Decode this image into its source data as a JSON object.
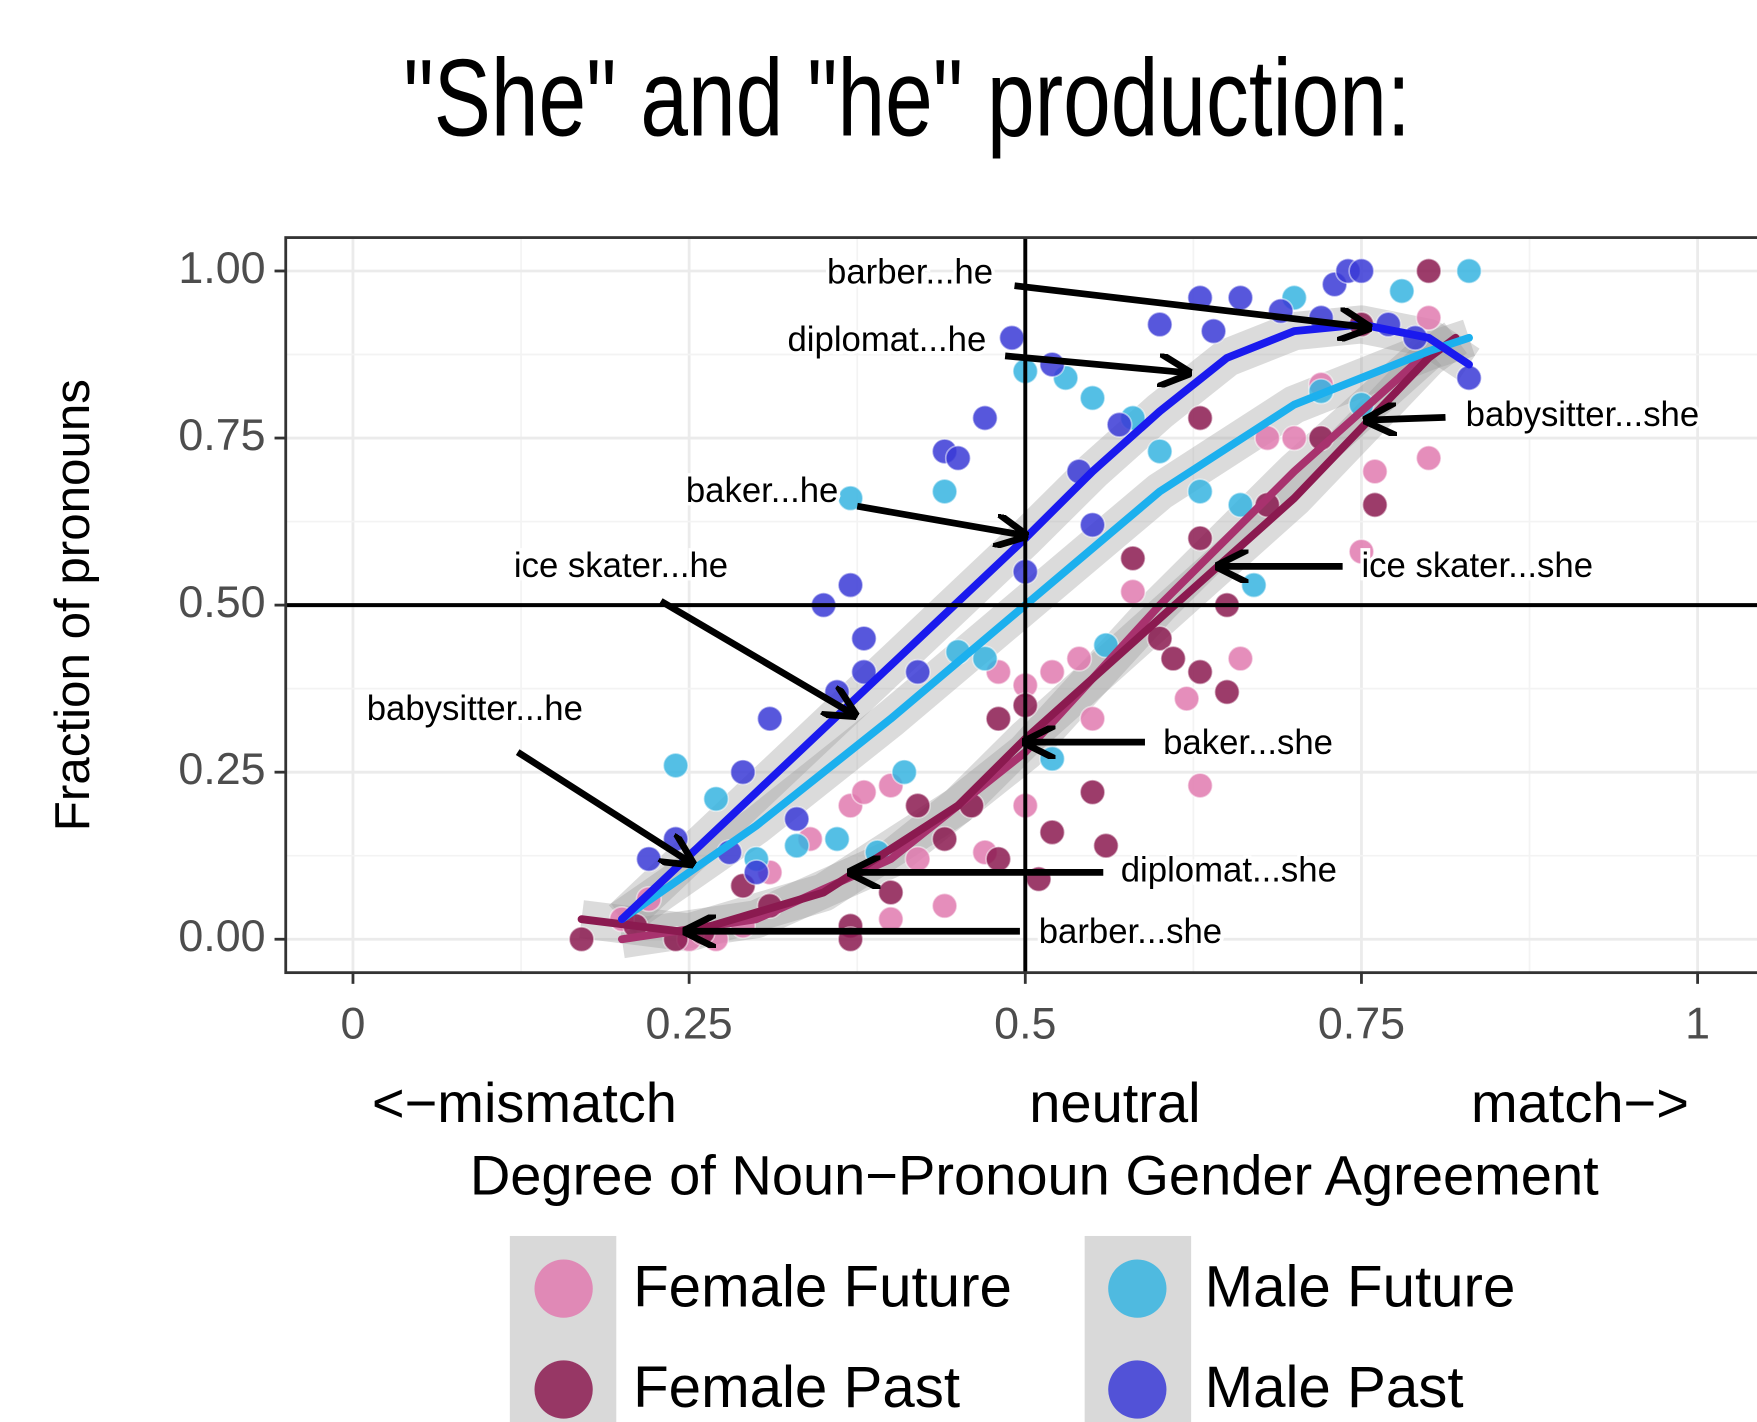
{
  "chart_data": {
    "type": "scatter",
    "title": "\"She\" and \"he\" production:",
    "ylabel": "Fraction of pronouns",
    "xlabel": "Degree of Noun−Pronoun Gender Agreement",
    "xlabel_parts": [
      "<−mismatch",
      "neutral",
      "match−>"
    ],
    "xlim": [
      -0.05,
      1.05
    ],
    "ylim": [
      -0.05,
      1.05
    ],
    "xticks": [
      0,
      0.25,
      0.5,
      0.75,
      1
    ],
    "yticks": [
      {
        "value": 0,
        "label": "0.00"
      },
      {
        "value": 0.25,
        "label": "0.25"
      },
      {
        "value": 0.5,
        "label": "0.50"
      },
      {
        "value": 0.75,
        "label": "0.75"
      },
      {
        "value": 1,
        "label": "1.00"
      }
    ],
    "grid": true,
    "vlines": [
      0.5
    ],
    "hlines": [
      0.5
    ],
    "series": [
      {
        "name": "Female Future",
        "color": "#e07aaf",
        "fit_color": "#a8326e",
        "x": [
          0.2,
          0.22,
          0.25,
          0.27,
          0.29,
          0.31,
          0.34,
          0.37,
          0.38,
          0.4,
          0.4,
          0.42,
          0.44,
          0.47,
          0.48,
          0.5,
          0.5,
          0.52,
          0.54,
          0.55,
          0.58,
          0.62,
          0.63,
          0.66,
          0.68,
          0.7,
          0.72,
          0.75,
          0.76,
          0.8,
          0.8
        ],
        "values": [
          0.03,
          0.06,
          0,
          0,
          0.02,
          0.1,
          0.15,
          0.2,
          0.22,
          0.23,
          0.03,
          0.12,
          0.05,
          0.13,
          0.4,
          0.2,
          0.38,
          0.4,
          0.42,
          0.33,
          0.52,
          0.36,
          0.23,
          0.42,
          0.75,
          0.75,
          0.83,
          0.58,
          0.7,
          0.72,
          0.93
        ],
        "fit_x": [
          0.2,
          0.3,
          0.4,
          0.5,
          0.6,
          0.7,
          0.8
        ],
        "fit_values": [
          0,
          0.03,
          0.12,
          0.28,
          0.5,
          0.7,
          0.88
        ]
      },
      {
        "name": "Female Past",
        "color": "#8b1a50",
        "fit_color": "#8b1a50",
        "x": [
          0.17,
          0.21,
          0.24,
          0.26,
          0.29,
          0.31,
          0.37,
          0.37,
          0.4,
          0.42,
          0.44,
          0.46,
          0.48,
          0.48,
          0.5,
          0.52,
          0.55,
          0.56,
          0.58,
          0.6,
          0.61,
          0.63,
          0.65,
          0.65,
          0.63,
          0.68,
          0.72,
          0.76,
          0.8,
          0.75,
          0.63,
          0.51
        ],
        "values": [
          0,
          0.02,
          0,
          0.01,
          0.08,
          0.05,
          0.02,
          0,
          0.07,
          0.2,
          0.15,
          0.2,
          0.12,
          0.33,
          0.35,
          0.16,
          0.22,
          0.14,
          0.57,
          0.45,
          0.42,
          0.4,
          0.5,
          0.37,
          0.6,
          0.65,
          0.75,
          0.65,
          1,
          0.92,
          0.78,
          0.09
        ],
        "fit_x": [
          0.17,
          0.25,
          0.35,
          0.45,
          0.5,
          0.6,
          0.7,
          0.8,
          0.82
        ],
        "fit_values": [
          0.03,
          0.01,
          0.07,
          0.2,
          0.3,
          0.48,
          0.66,
          0.87,
          0.9
        ]
      },
      {
        "name": "Male Future",
        "color": "#36b4e0",
        "fit_color": "#1cb0ee",
        "x": [
          0.24,
          0.27,
          0.3,
          0.33,
          0.36,
          0.37,
          0.44,
          0.45,
          0.47,
          0.5,
          0.53,
          0.55,
          0.58,
          0.6,
          0.63,
          0.66,
          0.67,
          0.7,
          0.72,
          0.75,
          0.78,
          0.83,
          0.56,
          0.52,
          0.41,
          0.39
        ],
        "values": [
          0.26,
          0.21,
          0.12,
          0.14,
          0.15,
          0.66,
          0.67,
          0.43,
          0.42,
          0.85,
          0.84,
          0.81,
          0.78,
          0.73,
          0.67,
          0.65,
          0.53,
          0.96,
          0.82,
          0.8,
          0.97,
          1,
          0.44,
          0.27,
          0.25,
          0.13
        ],
        "fit_x": [
          0.2,
          0.3,
          0.4,
          0.5,
          0.6,
          0.7,
          0.8,
          0.83
        ],
        "fit_values": [
          0.03,
          0.17,
          0.33,
          0.5,
          0.67,
          0.8,
          0.88,
          0.9
        ]
      },
      {
        "name": "Male Past",
        "color": "#3a3ad6",
        "fit_color": "#1a1aee",
        "x": [
          0.24,
          0.22,
          0.29,
          0.31,
          0.33,
          0.35,
          0.37,
          0.38,
          0.38,
          0.36,
          0.44,
          0.45,
          0.47,
          0.49,
          0.52,
          0.54,
          0.57,
          0.6,
          0.63,
          0.66,
          0.64,
          0.69,
          0.72,
          0.73,
          0.74,
          0.75,
          0.77,
          0.79,
          0.83,
          0.55,
          0.5,
          0.42,
          0.28,
          0.3
        ],
        "values": [
          0.15,
          0.12,
          0.25,
          0.33,
          0.18,
          0.5,
          0.53,
          0.45,
          0.4,
          0.37,
          0.73,
          0.72,
          0.78,
          0.9,
          0.86,
          0.7,
          0.77,
          0.92,
          0.96,
          0.96,
          0.91,
          0.94,
          0.93,
          0.98,
          1,
          1,
          0.92,
          0.9,
          0.84,
          0.62,
          0.55,
          0.4,
          0.13,
          0.1
        ],
        "fit_x": [
          0.2,
          0.3,
          0.4,
          0.5,
          0.55,
          0.6,
          0.65,
          0.7,
          0.75,
          0.8,
          0.83
        ],
        "fit_values": [
          0.03,
          0.22,
          0.41,
          0.6,
          0.7,
          0.79,
          0.87,
          0.91,
          0.92,
          0.9,
          0.86
        ]
      }
    ],
    "annotations": [
      {
        "text": "barber...he",
        "text_xy": [
          0.476,
          0.995
        ],
        "align": "end",
        "arrow_from": [
          0.492,
          0.978
        ],
        "arrow_to": [
          0.753,
          0.916
        ]
      },
      {
        "text": "diplomat...he",
        "text_xy": [
          0.471,
          0.894
        ],
        "align": "end",
        "arrow_from": [
          0.485,
          0.873
        ],
        "arrow_to": [
          0.619,
          0.848
        ]
      },
      {
        "text": "baker...he",
        "text_xy": [
          0.361,
          0.668
        ],
        "align": "end",
        "arrow_from": [
          0.375,
          0.648
        ],
        "arrow_to": [
          0.4975,
          0.605
        ]
      },
      {
        "text": "ice skater...he",
        "text_xy": [
          0.279,
          0.556
        ],
        "align": "end",
        "arrow_from": [
          0.229,
          0.506
        ],
        "arrow_to": [
          0.371,
          0.338
        ]
      },
      {
        "text": "babysitter...he",
        "text_xy": [
          0.171,
          0.342
        ],
        "align": "end",
        "arrow_from": [
          0.1225,
          0.28
        ],
        "arrow_to": [
          0.25,
          0.116
        ]
      },
      {
        "text": "babysitter...she",
        "text_xy": [
          0.8275,
          0.782
        ],
        "align": "start",
        "arrow_from": [
          0.8125,
          0.781
        ],
        "arrow_to": [
          0.756,
          0.777
        ]
      },
      {
        "text": "ice skater...she",
        "text_xy": [
          0.75,
          0.556
        ],
        "align": "start",
        "arrow_from": [
          0.736,
          0.558
        ],
        "arrow_to": [
          0.646,
          0.558
        ]
      },
      {
        "text": "baker...she",
        "text_xy": [
          0.6025,
          0.291
        ],
        "align": "start",
        "arrow_from": [
          0.589,
          0.295
        ],
        "arrow_to": [
          0.5025,
          0.295
        ]
      },
      {
        "text": "diplomat...she",
        "text_xy": [
          0.571,
          0.1
        ],
        "align": "start",
        "arrow_from": [
          0.558,
          0.1
        ],
        "arrow_to": [
          0.3725,
          0.1
        ]
      },
      {
        "text": "barber...she",
        "text_xy": [
          0.51,
          0.008
        ],
        "align": "start",
        "arrow_from": [
          0.496,
          0.012
        ],
        "arrow_to": [
          0.25,
          0.012
        ]
      }
    ]
  }
}
